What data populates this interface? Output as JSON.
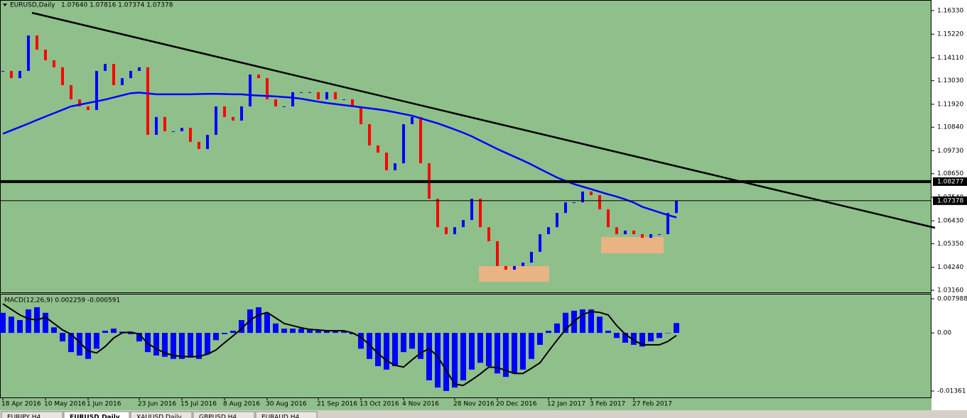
{
  "chart_data": [
    {
      "type": "candlestick",
      "title": "EURUSD,Daily",
      "subtitle": "1.07640 1.07816 1.07374 1.07378",
      "categories": [
        "18 Apr 2016",
        null,
        null,
        null,
        null,
        "10 May 2016",
        null,
        null,
        null,
        null,
        "1 Jun 2016",
        null,
        null,
        null,
        null,
        null,
        "23 Jun 2016",
        null,
        null,
        null,
        null,
        "15 Jul 2016",
        null,
        null,
        null,
        null,
        "8 Aug 2016",
        null,
        null,
        null,
        null,
        "30 Aug 2016",
        null,
        null,
        null,
        null,
        null,
        "21 Sep 2016",
        null,
        null,
        null,
        null,
        "13 Oct 2016",
        null,
        null,
        null,
        null,
        "4 Nov 2016",
        null,
        null,
        null,
        null,
        null,
        "28 Nov 2016",
        null,
        null,
        null,
        null,
        "20 Dec 2016",
        null,
        null,
        null,
        null,
        null,
        "12 Jan 2017",
        null,
        null,
        null,
        null,
        "3 Feb 2017",
        null,
        null,
        null,
        null,
        "27 Feb 2017",
        null,
        null,
        null,
        null,
        null
      ],
      "close": [
        1.1349,
        1.1315,
        1.1349,
        1.1516,
        1.1449,
        1.1399,
        1.1366,
        1.1282,
        1.1215,
        1.1182,
        1.1165,
        1.1349,
        1.1382,
        1.1282,
        1.1315,
        1.1349,
        1.1366,
        1.1048,
        1.1132,
        1.1065,
        1.1065,
        1.1081,
        1.1015,
        1.0981,
        1.1048,
        1.1182,
        1.1132,
        1.1115,
        1.1182,
        1.1332,
        1.1315,
        1.1215,
        1.1182,
        1.1182,
        1.1249,
        1.1249,
        1.1249,
        1.1215,
        1.1249,
        1.1215,
        1.1215,
        1.1182,
        1.1098,
        1.0998,
        1.0964,
        1.0881,
        1.0914,
        1.1098,
        1.1132,
        1.0914,
        1.0747,
        1.0613,
        1.058,
        1.0613,
        1.0647,
        1.0747,
        1.0613,
        1.0547,
        1.043,
        1.0413,
        1.043,
        1.0446,
        1.0497,
        1.058,
        1.0613,
        1.068,
        1.073,
        1.073,
        1.0781,
        1.0764,
        1.0697,
        1.0613,
        1.058,
        1.0597,
        1.058,
        1.0563,
        1.058,
        1.058,
        1.068,
        1.0738
      ],
      "up_color": "#0000ff",
      "down_color": "#ff0000",
      "ma": [
        1.1053,
        1.1069,
        1.1085,
        1.1101,
        1.1118,
        1.1134,
        1.115,
        1.1166,
        1.1182,
        1.119,
        1.1198,
        1.1206,
        1.1214,
        1.1224,
        1.1234,
        1.1244,
        1.1247,
        1.1243,
        1.1239,
        1.1239,
        1.1239,
        1.1239,
        1.1239,
        1.124,
        1.1241,
        1.1241,
        1.124,
        1.1239,
        1.1239,
        1.1235,
        1.1233,
        1.1231,
        1.1229,
        1.1226,
        1.1223,
        1.1218,
        1.1211,
        1.1204,
        1.1198,
        1.1193,
        1.1188,
        1.1183,
        1.1178,
        1.1173,
        1.1168,
        1.1162,
        1.1154,
        1.1146,
        1.1138,
        1.1126,
        1.1114,
        1.1102,
        1.1088,
        1.1073,
        1.1058,
        1.1041,
        1.1021,
        1.1001,
        1.0981,
        1.0963,
        1.0945,
        1.0927,
        1.0908,
        1.0887,
        1.0867,
        1.0847,
        1.0831,
        1.0816,
        1.0804,
        1.0792,
        1.078,
        1.0768,
        1.0757,
        1.0744,
        1.0729,
        1.0709,
        1.0696,
        1.0683,
        1.067,
        1.0659
      ],
      "ma_color": "#0000ff",
      "ylim": [
        1.0306,
        1.1683
      ],
      "yticks": [
        {
          "value": 1.1633,
          "label": "1.16330"
        },
        {
          "value": 1.1522,
          "label": "1.15220"
        },
        {
          "value": 1.1411,
          "label": "1.14110"
        },
        {
          "value": 1.1303,
          "label": "1.13030"
        },
        {
          "value": 1.1192,
          "label": "1.11920"
        },
        {
          "value": 1.1084,
          "label": "1.10840"
        },
        {
          "value": 1.0973,
          "label": "1.09730"
        },
        {
          "value": 1.0865,
          "label": "1.08650"
        },
        {
          "value": 1.0754,
          "label": "1.07540"
        },
        {
          "value": 1.0643,
          "label": "1.06430"
        },
        {
          "value": 1.0535,
          "label": "1.05350"
        },
        {
          "value": 1.0424,
          "label": "1.04240"
        },
        {
          "value": 1.0316,
          "label": "1.03160"
        }
      ],
      "hlines": [
        1.08277,
        1.07378
      ]
    },
    {
      "type": "bar",
      "title": "MACD(12,26,9) 0.002259 -0.000591",
      "values": [
        0.0047,
        0.0038,
        0.003,
        0.0055,
        0.006,
        0.0047,
        0.0013,
        -0.002,
        -0.0045,
        -0.0053,
        -0.0061,
        -0.0037,
        0.0005,
        0.001,
        0.0003,
        -0.0003,
        -0.002,
        -0.0045,
        -0.0053,
        -0.0056,
        -0.0061,
        -0.0061,
        -0.0058,
        -0.0061,
        -0.005,
        -0.0017,
        -0.0003,
        0.0005,
        0.003,
        0.0055,
        0.006,
        0.0047,
        0.0022,
        0.001,
        0.001,
        0.001,
        0.001,
        0.0007,
        0.0005,
        0.0005,
        0.0003,
        -0.0003,
        -0.0037,
        -0.0061,
        -0.0078,
        -0.0086,
        -0.0078,
        -0.0045,
        -0.0037,
        -0.0061,
        -0.0111,
        -0.0128,
        -0.0136,
        -0.0128,
        -0.0111,
        -0.0086,
        -0.007,
        -0.0078,
        -0.0095,
        -0.0103,
        -0.0095,
        -0.0086,
        -0.0061,
        -0.0028,
        0.0005,
        0.0022,
        0.0047,
        0.0052,
        0.0055,
        0.0055,
        0.0038,
        0.0005,
        -0.0012,
        -0.0023,
        -0.0028,
        -0.0032,
        -0.002,
        -0.0012,
        0,
        0.0023
      ],
      "color": "#0000ff",
      "signal": [
        0.0068,
        0.0055,
        0.0042,
        0.0033,
        0.003,
        0.0037,
        0.0022,
        0.0007,
        -0.0003,
        -0.0022,
        -0.0042,
        -0.0047,
        -0.0032,
        -0.0012,
        0,
        0.0002,
        -0.0003,
        -0.0025,
        -0.0037,
        -0.0047,
        -0.0053,
        -0.0055,
        -0.0056,
        -0.0055,
        -0.005,
        -0.004,
        -0.0023,
        -0.0007,
        0.001,
        0.003,
        0.0042,
        0.0048,
        0.0035,
        0.0022,
        0.0017,
        0.0012,
        0.0008,
        0.0007,
        0.0005,
        0.0005,
        0.0005,
        0,
        -0.001,
        -0.0028,
        -0.0048,
        -0.0065,
        -0.0076,
        -0.008,
        -0.0063,
        -0.0047,
        -0.0037,
        -0.0055,
        -0.0088,
        -0.012,
        -0.0123,
        -0.011,
        -0.0096,
        -0.008,
        -0.0081,
        -0.0088,
        -0.0095,
        -0.0095,
        -0.0083,
        -0.007,
        -0.0043,
        -0.0017,
        0.0008,
        0.0027,
        0.0043,
        0.005,
        0.0048,
        0.0042,
        0.0017,
        -0.0003,
        -0.0017,
        -0.0028,
        -0.0028,
        -0.0028,
        -0.002,
        -0.0006
      ],
      "signal_color": "#000000",
      "ylim": [
        -0.01511,
        0.00915
      ],
      "yticks": [
        0.007988,
        {
          "value": 0,
          "label": "0.00"
        },
        -0.01361
      ]
    }
  ],
  "tabs": [
    "EURJPY,H4",
    "EURUSD,Daily",
    "XAUUSD,Daily",
    "GBPUSD,H4",
    "EURAUD,H4"
  ]
}
